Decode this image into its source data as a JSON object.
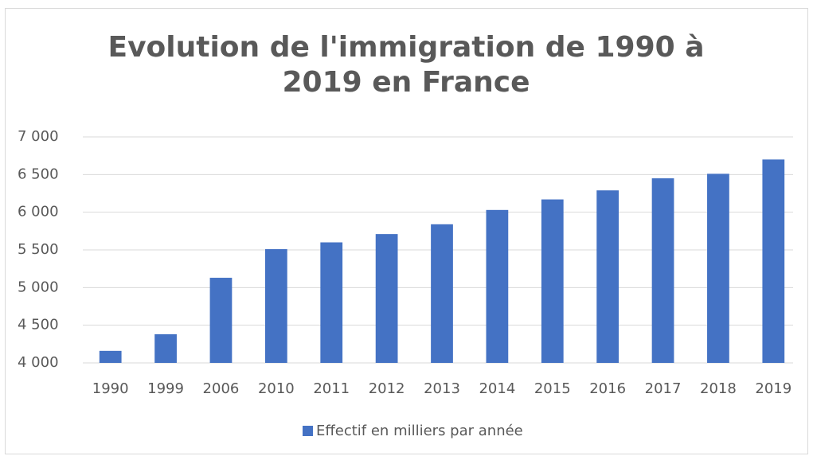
{
  "chart_data": {
    "type": "bar",
    "title": "Evolution de l'immigration de 1990 à 2019 en France",
    "categories": [
      "1990",
      "1999",
      "2006",
      "2010",
      "2011",
      "2012",
      "2013",
      "2014",
      "2015",
      "2016",
      "2017",
      "2018",
      "2019"
    ],
    "series": [
      {
        "name": "Effectif en milliers par année",
        "color": "#4472c4",
        "values": [
          4160,
          4380,
          5130,
          5510,
          5600,
          5710,
          5840,
          6030,
          6170,
          6290,
          6450,
          6510,
          6700
        ]
      }
    ],
    "ylim": [
      4000,
      7000
    ],
    "yticks": [
      {
        "value": 4000,
        "label": "4 000"
      },
      {
        "value": 4500,
        "label": "4 500"
      },
      {
        "value": 5000,
        "label": "5 000"
      },
      {
        "value": 5500,
        "label": "5 500"
      },
      {
        "value": 6000,
        "label": "6 000"
      },
      {
        "value": 6500,
        "label": "6 500"
      },
      {
        "value": 7000,
        "label": "7 000"
      }
    ],
    "grid": true,
    "legend": "bottom"
  }
}
